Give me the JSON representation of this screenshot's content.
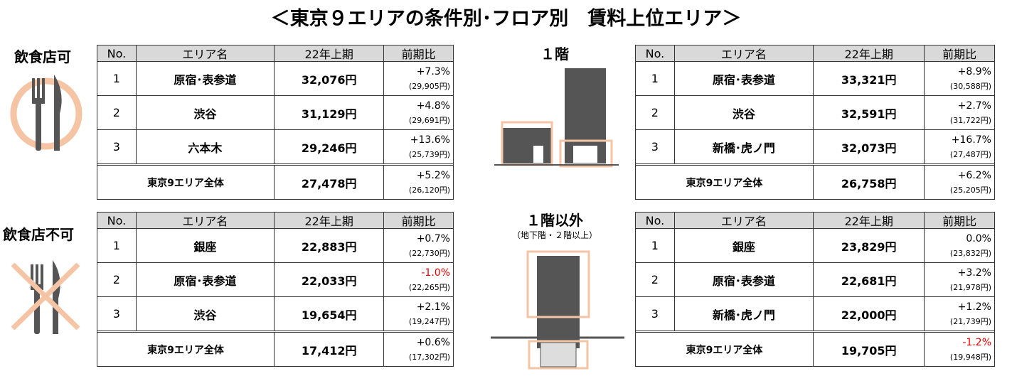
{
  "header": {
    "title": "＜東京９エリアの条件別･フロア別　賃料上位エリア＞"
  },
  "sections": {
    "restaurant_ok": "飲食店可",
    "restaurant_ng": "飲食店不可",
    "first_floor": "１階",
    "other_floors": "１階以外",
    "other_floors_note": "（地下階・２階以上）"
  },
  "columns": [
    "No.",
    "エリア名",
    "22年上期",
    "前期比"
  ],
  "tables": [
    {
      "rows": [
        [
          "1",
          "原宿･表参道",
          "32,076円",
          "+7.3%",
          "(29,905円)"
        ],
        [
          "2",
          "渋谷",
          "31,129円",
          "+4.8%",
          "(29,691円)"
        ],
        [
          "3",
          "六本木",
          "29,246円",
          "+13.6%",
          "(25,739円)"
        ]
      ],
      "total": [
        "東京9エリア全体",
        "27,478円",
        "+5.2%",
        "(26,120円)"
      ]
    },
    {
      "rows": [
        [
          "1",
          "銀座",
          "22,883円",
          "+0.7%",
          "(22,730円)"
        ],
        [
          "2",
          "原宿･表参道",
          "22,033円",
          "-1.0%",
          "(22,265円)"
        ],
        [
          "3",
          "渋谷",
          "19,654円",
          "+2.1%",
          "(19,247円)"
        ]
      ],
      "total": [
        "東京9エリア全体",
        "17,412円",
        "+0.6%",
        "(17,302円)"
      ]
    },
    {
      "rows": [
        [
          "1",
          "原宿･表参道",
          "33,321円",
          "+8.9%",
          "(30,588円)"
        ],
        [
          "2",
          "渋谷",
          "32,591円",
          "+2.7%",
          "(31,722円)"
        ],
        [
          "3",
          "新橋･虎ノ門",
          "32,073円",
          "+16.7%",
          "(27,487円)"
        ]
      ],
      "total": [
        "東京9エリア全体",
        "26,758円",
        "+6.2%",
        "(25,205円)"
      ]
    },
    {
      "rows": [
        [
          "1",
          "銀座",
          "23,829円",
          "0.0%",
          "(23,832円)"
        ],
        [
          "2",
          "原宿･表参道",
          "22,681円",
          "+3.2%",
          "(21,978円)"
        ],
        [
          "3",
          "新橋･虎ノ門",
          "22,000円",
          "+1.2%",
          "(21,739円)"
        ]
      ],
      "total": [
        "東京9エリア全体",
        "19,705円",
        "-1.2%",
        "(19,948円)"
      ]
    }
  ]
}
